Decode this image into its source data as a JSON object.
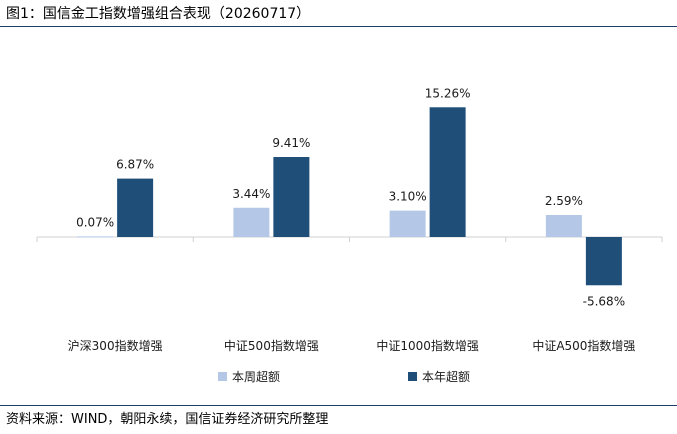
{
  "header": {
    "title": "图1：国信金工指数增强组合表现（20260717）"
  },
  "footer": {
    "source": "资料来源：WIND，朝阳永续，国信证券经济研究所整理"
  },
  "chart_data": {
    "type": "bar",
    "categories": [
      "沪深300指数增强",
      "中证500指数增强",
      "中证1000指数增强",
      "中证A500指数增强"
    ],
    "series": [
      {
        "name": "本周超额",
        "values": [
          0.07,
          3.44,
          3.1,
          2.59
        ],
        "labels": [
          "0.07%",
          "3.44%",
          "3.10%",
          "2.59%"
        ],
        "color": "#b4c7e7"
      },
      {
        "name": "本年超额",
        "values": [
          6.87,
          9.41,
          15.26,
          -5.68
        ],
        "labels": [
          "6.87%",
          "9.41%",
          "15.26%",
          "-5.68%"
        ],
        "color": "#1f4e79"
      }
    ],
    "ylim": [
      -8,
      18
    ],
    "grid": false,
    "legend": "bottom"
  }
}
